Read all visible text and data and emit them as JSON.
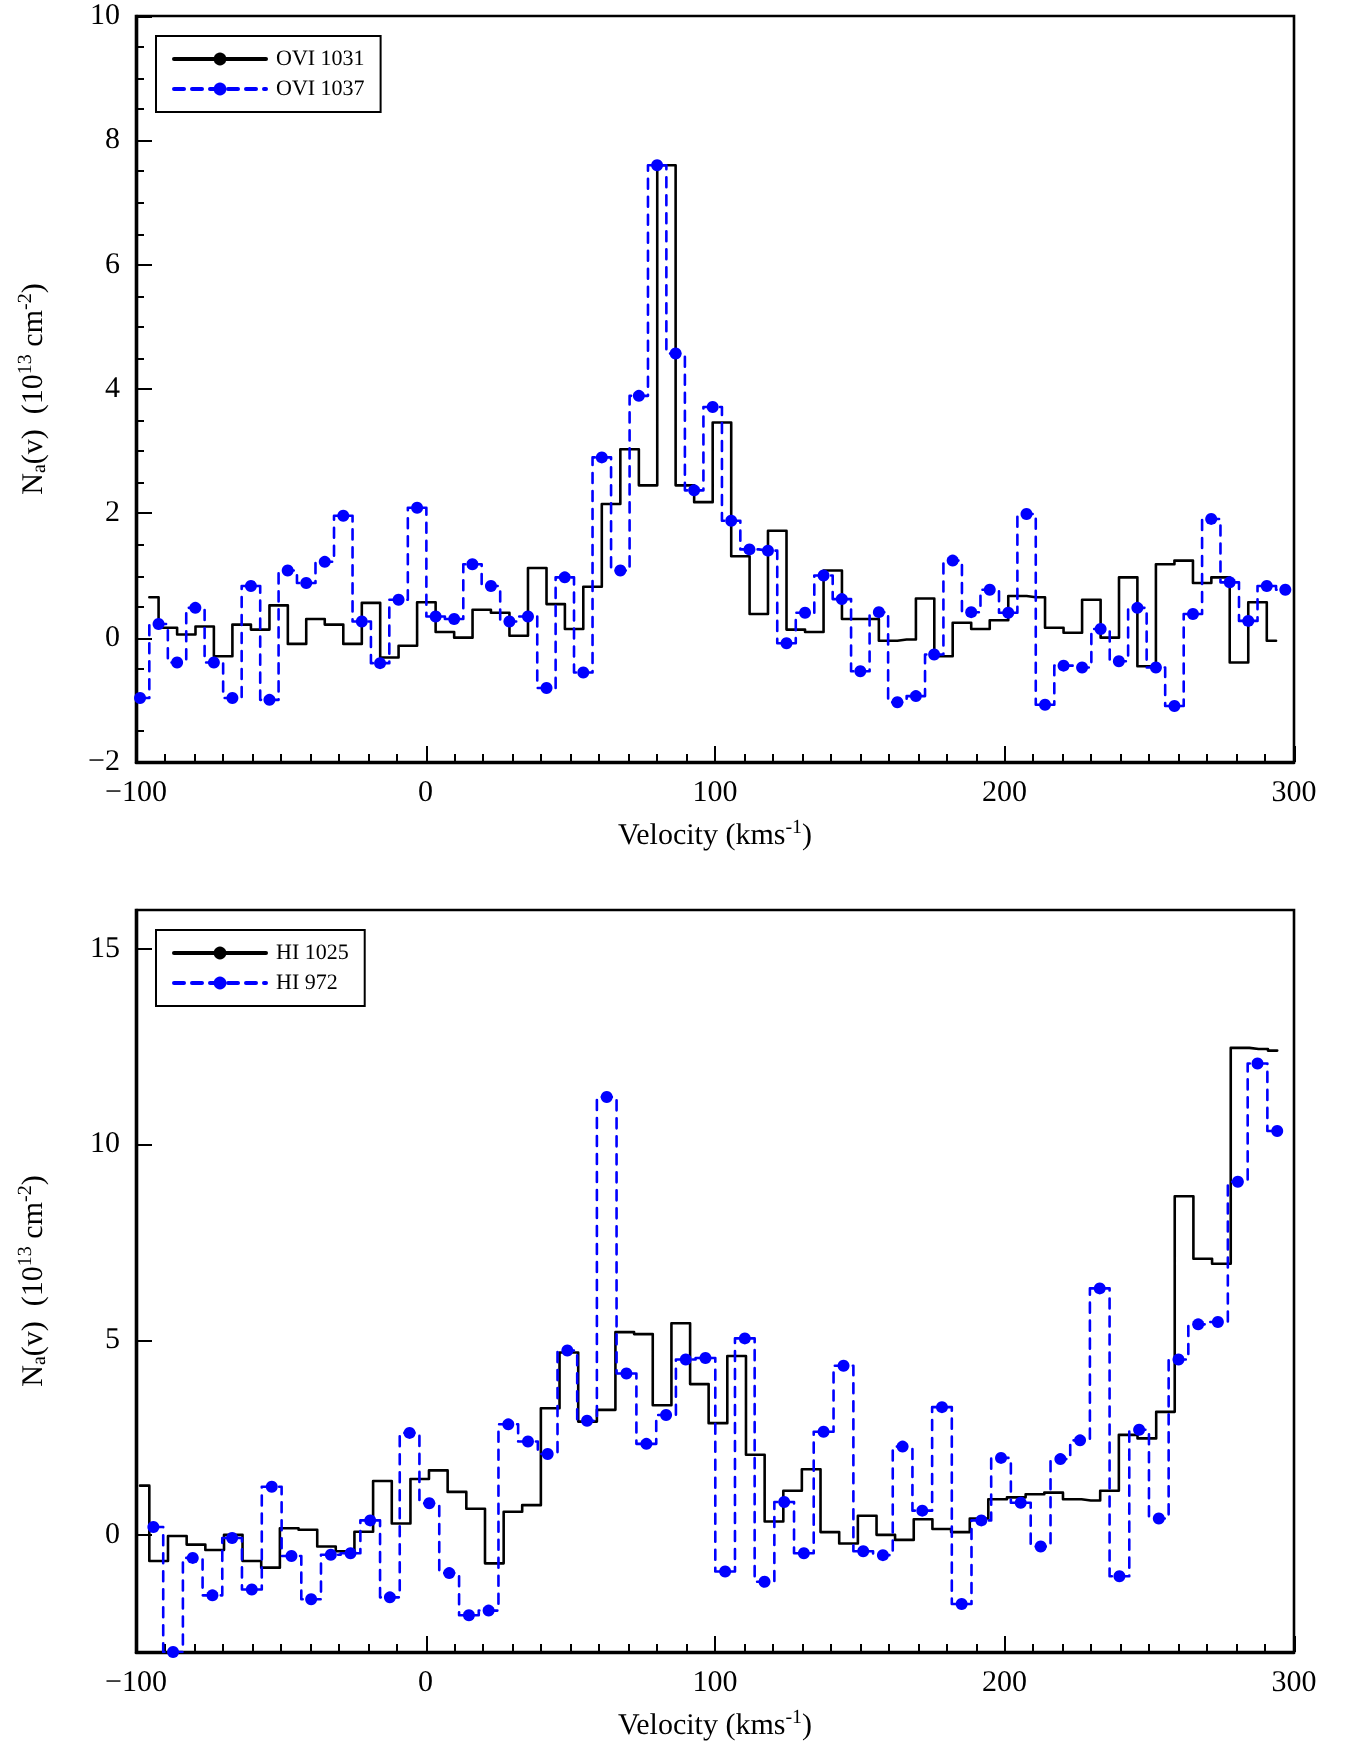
{
  "chart_data": [
    {
      "type": "step",
      "xlabel": "Velocity (kms$^{-1}$)",
      "ylabel": "N$_{a}$(v)  (10$^{13}$ cm$^{-2}$)",
      "xlim": [
        -100,
        300
      ],
      "xticks": [
        -100,
        0,
        100,
        200,
        300
      ],
      "ylim": [
        -2,
        10
      ],
      "yticks": [
        -2,
        0,
        2,
        4,
        6,
        8,
        10
      ],
      "legend": "top left",
      "series": [
        {
          "name": "OVI 1031",
          "color": "#000000",
          "marker": "none",
          "line_style": "solid",
          "x": [
            -95.4,
            -89.0,
            -82.6,
            -76.3,
            -69.9,
            -63.5,
            -57.1,
            -50.7,
            -44.4,
            -38.0,
            -31.6,
            -25.2,
            -18.8,
            -12.5,
            -6.1,
            0.3,
            6.7,
            13.1,
            19.4,
            25.8,
            32.2,
            38.6,
            45.0,
            51.3,
            57.7,
            64.1,
            70.5,
            76.9,
            83.2,
            89.6,
            96.0,
            102.4,
            108.8,
            115.1,
            121.5,
            127.9,
            134.3,
            140.7,
            147.0,
            153.4,
            159.8,
            166.2,
            172.6,
            178.9,
            185.3,
            191.7,
            198.1,
            204.5,
            210.8,
            217.2,
            223.6,
            230.0,
            236.4,
            242.7,
            249.1,
            255.5,
            261.9,
            268.3,
            274.6,
            281.0,
            287.4,
            293.8
          ],
          "values": [
            0.65,
            0.16,
            0.05,
            0.18,
            -0.3,
            0.21,
            0.13,
            0.52,
            -0.1,
            0.3,
            0.21,
            -0.1,
            0.56,
            -0.32,
            -0.13,
            0.57,
            0.09,
            0.0,
            0.45,
            0.4,
            0.03,
            1.12,
            0.54,
            0.14,
            0.82,
            2.15,
            3.03,
            2.45,
            7.6,
            2.45,
            2.18,
            3.46,
            1.31,
            0.38,
            1.72,
            0.13,
            0.09,
            1.08,
            0.3,
            0.3,
            -0.05,
            -0.03,
            0.63,
            -0.3,
            0.24,
            0.14,
            0.28,
            0.67,
            0.65,
            0.16,
            0.08,
            0.61,
            0.0,
            0.97,
            -0.46,
            1.18,
            1.24,
            0.88,
            0.97,
            -0.4,
            0.57,
            -0.05
          ]
        },
        {
          "name": "OVI 1037",
          "color": "#0000ff",
          "marker": "circle",
          "line_style": "dashed",
          "x": [
            -98.6,
            -92.2,
            -85.8,
            -79.5,
            -73.1,
            -66.7,
            -60.3,
            -53.9,
            -47.6,
            -41.2,
            -34.8,
            -28.4,
            -22.0,
            -15.7,
            -9.3,
            -2.9,
            3.5,
            9.9,
            16.2,
            22.6,
            29.0,
            35.4,
            41.8,
            48.1,
            54.5,
            60.9,
            67.3,
            73.7,
            80.0,
            86.4,
            92.8,
            99.2,
            105.6,
            111.9,
            118.3,
            124.7,
            131.1,
            137.5,
            143.8,
            150.2,
            156.6,
            163.0,
            169.4,
            175.7,
            182.1,
            188.5,
            194.9,
            201.3,
            207.6,
            214.0,
            220.4,
            226.8,
            233.2,
            239.5,
            245.9,
            252.3,
            258.7,
            265.1,
            271.4,
            277.8,
            284.2,
            290.6,
            297.0
          ],
          "values": [
            -0.97,
            0.22,
            -0.4,
            0.48,
            -0.4,
            -0.97,
            0.83,
            -1.0,
            1.08,
            0.88,
            1.22,
            1.96,
            0.26,
            -0.41,
            0.61,
            2.09,
            0.34,
            0.3,
            1.18,
            0.83,
            0.26,
            0.34,
            -0.81,
            0.97,
            -0.56,
            2.9,
            1.08,
            3.89,
            7.6,
            4.57,
            2.37,
            3.71,
            1.88,
            1.42,
            1.4,
            -0.09,
            0.4,
            1.0,
            0.62,
            -0.54,
            0.41,
            -1.04,
            -0.94,
            -0.27,
            1.24,
            0.41,
            0.77,
            0.4,
            1.99,
            -1.08,
            -0.45,
            -0.48,
            0.14,
            -0.38,
            0.48,
            -0.48,
            -1.1,
            0.38,
            1.91,
            0.89,
            0.27,
            0.83,
            0.77
          ]
        }
      ]
    },
    {
      "type": "step",
      "xlabel": "Velocity (kms$^{-1}$)",
      "ylabel": "N$_{a}$(v)  (10$^{13}$ cm$^{-2}$)",
      "xlim": [
        -100,
        300
      ],
      "xticks": [
        -100,
        0,
        100,
        200,
        300
      ],
      "ylim": [
        -3,
        16
      ],
      "yticks": [
        0,
        5,
        10,
        15
      ],
      "legend": "top left",
      "series": [
        {
          "name": "HI 1025",
          "color": "#000000",
          "marker": "none",
          "line_style": "solid",
          "x": [
            -98.6,
            -92.2,
            -85.7,
            -79.3,
            -72.8,
            -66.4,
            -60.0,
            -53.5,
            -47.1,
            -40.6,
            -34.2,
            -27.8,
            -21.3,
            -14.9,
            -8.4,
            -2.0,
            4.4,
            10.9,
            17.3,
            23.8,
            30.2,
            36.6,
            43.1,
            49.5,
            56.0,
            62.4,
            68.8,
            75.3,
            81.7,
            88.2,
            94.6,
            101.0,
            107.5,
            113.9,
            120.4,
            126.8,
            133.2,
            139.7,
            146.1,
            152.6,
            159.0,
            165.4,
            171.9,
            178.3,
            184.8,
            191.2,
            197.6,
            204.1,
            210.5,
            217.0,
            223.4,
            229.8,
            236.3,
            242.7,
            249.2,
            255.6,
            262.0,
            268.5,
            274.9,
            281.4,
            287.8,
            294.2
          ],
          "values": [
            1.26,
            -0.67,
            -0.03,
            -0.25,
            -0.39,
            0.0,
            -0.67,
            -0.84,
            0.17,
            0.13,
            -0.3,
            -0.42,
            0.08,
            1.38,
            0.29,
            1.43,
            1.65,
            1.1,
            0.67,
            -0.73,
            0.59,
            0.76,
            3.24,
            4.67,
            2.9,
            3.2,
            5.19,
            5.14,
            3.32,
            5.42,
            3.86,
            2.86,
            4.58,
            2.05,
            0.34,
            1.13,
            1.68,
            0.07,
            -0.22,
            0.49,
            0.0,
            -0.13,
            0.4,
            0.15,
            0.07,
            0.42,
            0.91,
            0.96,
            1.04,
            1.08,
            0.91,
            0.88,
            1.13,
            2.56,
            2.47,
            3.15,
            8.67,
            7.07,
            6.94,
            12.47,
            12.44,
            12.4
          ]
        },
        {
          "name": "HI 972",
          "color": "#0000ff",
          "marker": "circle",
          "line_style": "dashed",
          "x": [
            -94.0,
            -87.2,
            -80.4,
            -73.6,
            -66.8,
            -60.0,
            -53.1,
            -46.3,
            -39.5,
            -32.7,
            -25.9,
            -19.1,
            -12.3,
            -5.5,
            1.3,
            8.2,
            15.0,
            21.8,
            28.6,
            35.4,
            42.2,
            49.0,
            55.8,
            62.6,
            69.4,
            76.3,
            83.1,
            89.9,
            96.7,
            103.5,
            110.3,
            117.1,
            123.9,
            130.7,
            137.5,
            144.4,
            151.2,
            158.0,
            164.8,
            171.6,
            178.4,
            185.2,
            192.0,
            198.8,
            205.6,
            212.5,
            219.3,
            226.1,
            232.9,
            239.7,
            246.5,
            253.3,
            260.1,
            266.9,
            273.7,
            280.6,
            287.4,
            294.2
          ],
          "values": [
            0.2,
            -3.0,
            -0.59,
            -1.55,
            -0.08,
            -1.4,
            1.23,
            -0.54,
            -1.65,
            -0.51,
            -0.47,
            0.37,
            -1.6,
            2.61,
            0.81,
            -0.98,
            -2.06,
            -1.94,
            2.83,
            2.39,
            2.07,
            4.72,
            2.92,
            11.21,
            4.13,
            2.33,
            3.07,
            4.49,
            4.53,
            -0.94,
            5.03,
            -1.2,
            0.84,
            -0.47,
            2.64,
            4.33,
            -0.42,
            -0.52,
            2.26,
            0.62,
            3.27,
            -1.77,
            0.37,
            1.97,
            0.82,
            -0.3,
            1.94,
            2.42,
            6.31,
            -1.06,
            2.69,
            0.42,
            4.49,
            5.39,
            5.45,
            9.04,
            12.07,
            10.34
          ]
        }
      ]
    }
  ]
}
